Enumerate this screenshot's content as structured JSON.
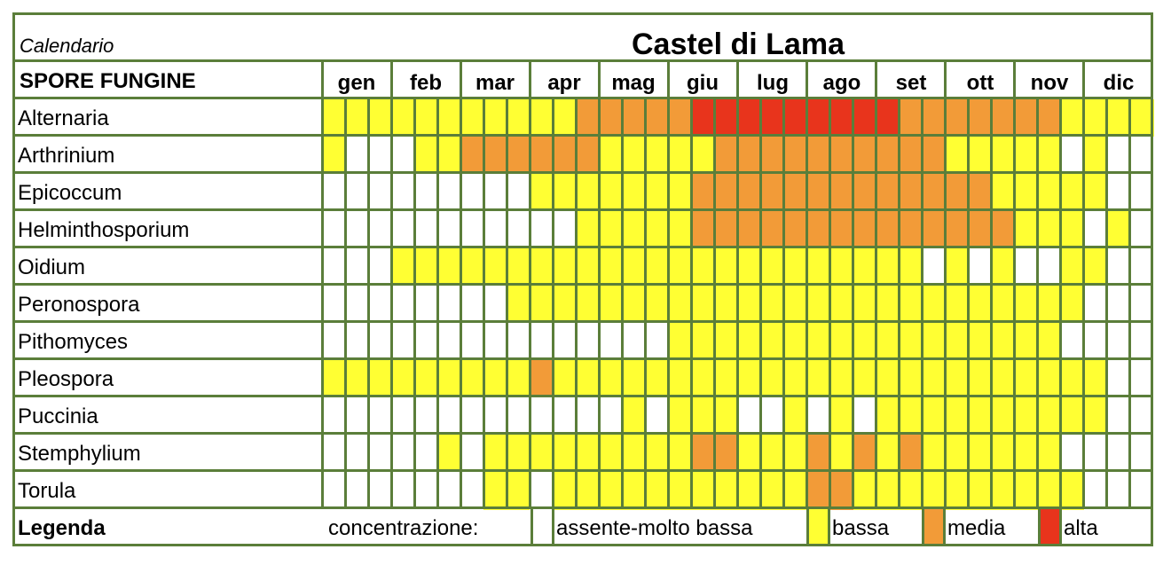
{
  "header": {
    "subtitle": "Calendario",
    "title": "Castel di Lama"
  },
  "table": {
    "column_header": "SPORE FUNGINE",
    "months": [
      "gen",
      "feb",
      "mar",
      "apr",
      "mag",
      "giu",
      "lug",
      "ago",
      "set",
      "ott",
      "nov",
      "dic"
    ]
  },
  "levels": {
    "0": "assente-molto bassa",
    "1": "bassa",
    "2": "media",
    "3": "alta"
  },
  "colors": {
    "0": "#ffffff",
    "1": "#ffff33",
    "2": "#f29b38",
    "3": "#e8341c",
    "grid": "#5b7e3a"
  },
  "rows": [
    {
      "name": "Alternaria",
      "cells": [
        1,
        1,
        1,
        1,
        1,
        1,
        1,
        1,
        1,
        1,
        1,
        2,
        2,
        2,
        2,
        2,
        3,
        3,
        3,
        3,
        3,
        3,
        3,
        3,
        3,
        2,
        2,
        2,
        2,
        2,
        2,
        2,
        1,
        1,
        1,
        1
      ]
    },
    {
      "name": "Arthrinium",
      "cells": [
        1,
        0,
        0,
        0,
        1,
        1,
        2,
        2,
        2,
        2,
        2,
        2,
        1,
        1,
        1,
        1,
        1,
        2,
        2,
        2,
        2,
        2,
        2,
        2,
        2,
        2,
        2,
        1,
        1,
        1,
        1,
        1,
        0,
        1,
        0,
        0
      ]
    },
    {
      "name": "Epicoccum",
      "cells": [
        0,
        0,
        0,
        0,
        0,
        0,
        0,
        0,
        0,
        1,
        1,
        1,
        1,
        1,
        1,
        1,
        2,
        2,
        2,
        2,
        2,
        2,
        2,
        2,
        2,
        2,
        2,
        2,
        2,
        1,
        1,
        1,
        1,
        1,
        0,
        0
      ]
    },
    {
      "name": "Helminthosporium",
      "cells": [
        0,
        0,
        0,
        0,
        0,
        0,
        0,
        0,
        0,
        0,
        0,
        1,
        1,
        1,
        1,
        1,
        2,
        2,
        2,
        2,
        2,
        2,
        2,
        2,
        2,
        2,
        2,
        2,
        2,
        2,
        1,
        1,
        1,
        0,
        1,
        0
      ]
    },
    {
      "name": "Oidium",
      "cells": [
        0,
        0,
        0,
        1,
        1,
        1,
        1,
        1,
        1,
        1,
        1,
        1,
        1,
        1,
        1,
        1,
        1,
        1,
        1,
        1,
        1,
        1,
        1,
        1,
        1,
        1,
        0,
        1,
        0,
        1,
        0,
        0,
        1,
        1,
        0,
        0
      ]
    },
    {
      "name": "Peronospora",
      "cells": [
        0,
        0,
        0,
        0,
        0,
        0,
        0,
        0,
        1,
        1,
        1,
        1,
        1,
        1,
        1,
        1,
        1,
        1,
        1,
        1,
        1,
        1,
        1,
        1,
        1,
        1,
        1,
        1,
        1,
        1,
        1,
        1,
        1,
        0,
        0,
        0
      ]
    },
    {
      "name": "Pithomyces",
      "cells": [
        0,
        0,
        0,
        0,
        0,
        0,
        0,
        0,
        0,
        0,
        0,
        0,
        0,
        0,
        0,
        1,
        1,
        1,
        1,
        1,
        1,
        1,
        1,
        1,
        1,
        1,
        1,
        1,
        1,
        1,
        1,
        1,
        0,
        0,
        0,
        0
      ]
    },
    {
      "name": "Pleospora",
      "cells": [
        1,
        1,
        1,
        1,
        1,
        1,
        1,
        1,
        1,
        2,
        1,
        1,
        1,
        1,
        1,
        1,
        1,
        1,
        1,
        1,
        1,
        1,
        1,
        1,
        1,
        1,
        1,
        1,
        1,
        1,
        1,
        1,
        1,
        1,
        0,
        0
      ]
    },
    {
      "name": "Puccinia",
      "cells": [
        0,
        0,
        0,
        0,
        0,
        0,
        0,
        0,
        0,
        0,
        0,
        0,
        0,
        1,
        0,
        1,
        1,
        1,
        0,
        0,
        1,
        0,
        1,
        0,
        1,
        1,
        1,
        1,
        1,
        1,
        1,
        1,
        1,
        1,
        0,
        0
      ]
    },
    {
      "name": "Stemphylium",
      "cells": [
        0,
        0,
        0,
        0,
        0,
        1,
        0,
        1,
        1,
        1,
        1,
        1,
        1,
        1,
        1,
        1,
        2,
        2,
        1,
        1,
        1,
        2,
        1,
        2,
        1,
        2,
        1,
        1,
        1,
        1,
        1,
        1,
        0,
        0,
        0,
        0
      ]
    },
    {
      "name": "Torula",
      "cells": [
        0,
        0,
        0,
        0,
        0,
        0,
        0,
        1,
        1,
        0,
        1,
        1,
        1,
        1,
        1,
        1,
        1,
        1,
        1,
        1,
        1,
        2,
        2,
        1,
        1,
        1,
        1,
        1,
        1,
        1,
        1,
        1,
        1,
        0,
        0,
        0
      ]
    }
  ],
  "legend": {
    "title": "Legenda",
    "label": "concentrazione:",
    "items": [
      {
        "level": 0,
        "label": "assente-molto bassa"
      },
      {
        "level": 1,
        "label": "bassa"
      },
      {
        "level": 2,
        "label": "media"
      },
      {
        "level": 3,
        "label": "alta"
      }
    ]
  }
}
